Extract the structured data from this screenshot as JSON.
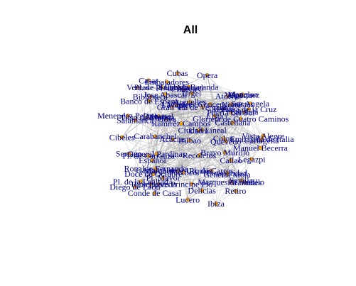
{
  "title": "All",
  "colors": {
    "edge": "#aaaaaa",
    "node_fill": "#ffa500",
    "node_stroke": "#555555",
    "label": "#00008b"
  },
  "nodes": [
    "Embajada de Italia",
    "Marques de Urquijo",
    "Pl. de Manuel",
    "Conde de Casal",
    "Sainz de Baranda",
    "Pl. de la Cebada",
    "Pl. de Vergara",
    "Pl. de la Lealtad",
    "Ramirez Campos",
    "Jose Abascal",
    "Plaza de la Cruz",
    "General Mola",
    "Candela",
    "Biblioteca",
    "Sor Angela",
    "Ronaldo Fernande",
    "Martires Concepcionistas",
    "Pl. de Carros",
    "Pl. de Carranza",
    "Glorieta de Cuatro Caminos",
    "Cubas",
    "Bravo Murillo",
    "Salamanca",
    "General Pardinas",
    "Ciudad Lineal",
    "Gaztambide",
    "Casar",
    "Carabanchel",
    "Espanol",
    "Doce de Octubre",
    "Sepulveda",
    "Alvarez",
    "Puerta del Sol",
    "Atocha",
    "Banco de Espana",
    "Cibeles",
    "Castellana",
    "Lavapies",
    "Tirso de Molina",
    "Pl. Mayor",
    "Opera",
    "Sevilla",
    "Callao",
    "Recoletos",
    "Colon",
    "Goya",
    "Serrano",
    "Retiro",
    "Velazquez",
    "Moncloa",
    "Arguelles",
    "Quevedo",
    "Bilbao",
    "Tribunal",
    "Chueca",
    "Gran Via",
    "Lista",
    "Diego de Leon",
    "Prosperidad",
    "Cartagena",
    "Ventas",
    "Manuel Becerra",
    "Ibiza",
    "Menendez Pelayo",
    "Pacifico",
    "Delicias",
    "Legazpi",
    "Embajadores",
    "Acacias",
    "Piramides",
    "Marques de Vadillo",
    "Usera",
    "Oporto",
    "Vista Alegre",
    "Urgel",
    "Lucero",
    "Batan",
    "Principe Pio",
    "Norte",
    "Rios Rosas"
  ],
  "edge_count": 420,
  "random_seed": 7
}
